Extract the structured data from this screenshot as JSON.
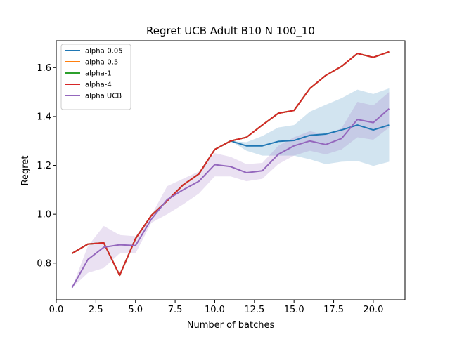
{
  "chart_data": {
    "type": "line",
    "title": "Regret UCB Adult B10 N 100_10",
    "xlabel": "Number of batches",
    "ylabel": "Regret",
    "xlim": [
      0,
      22.0
    ],
    "ylim": [
      0.65,
      1.71
    ],
    "xticks": [
      0.0,
      2.5,
      5.0,
      7.5,
      10.0,
      12.5,
      15.0,
      17.5,
      20.0
    ],
    "xtick_labels": [
      "0.0",
      "2.5",
      "5.0",
      "7.5",
      "10.0",
      "12.5",
      "15.0",
      "17.5",
      "20.0"
    ],
    "yticks": [
      0.8,
      1.0,
      1.2,
      1.4,
      1.6
    ],
    "ytick_labels": [
      "0.8",
      "1.0",
      "1.2",
      "1.4",
      "1.6"
    ],
    "legend_position": "top-left",
    "grid": false,
    "x": [
      1,
      2,
      3,
      4,
      5,
      6,
      7,
      8,
      9,
      10,
      11,
      12,
      13,
      14,
      15,
      16,
      17,
      18,
      19,
      20,
      21
    ],
    "series": [
      {
        "name": "alpha-0.05",
        "color": "#1f77b4",
        "values": [
          0.84,
          0.878,
          0.883,
          0.75,
          0.9,
          0.995,
          1.055,
          1.12,
          1.165,
          1.265,
          1.3,
          1.28,
          1.28,
          1.298,
          1.302,
          1.323,
          1.328,
          1.345,
          1.365,
          1.345,
          1.365
        ],
        "band_low": [
          0.84,
          0.878,
          0.883,
          0.75,
          0.9,
          0.995,
          1.055,
          1.12,
          1.165,
          1.265,
          1.3,
          1.26,
          1.24,
          1.24,
          1.24,
          1.225,
          1.205,
          1.215,
          1.218,
          1.198,
          1.215
        ],
        "band_high": [
          0.84,
          0.878,
          0.883,
          0.75,
          0.9,
          0.995,
          1.055,
          1.12,
          1.165,
          1.265,
          1.3,
          1.295,
          1.32,
          1.355,
          1.365,
          1.42,
          1.448,
          1.475,
          1.51,
          1.492,
          1.515
        ]
      },
      {
        "name": "alpha-0.5",
        "color": "#ff7f0e",
        "values": [
          0.84,
          0.878,
          0.883,
          0.75,
          0.9,
          0.995,
          1.055,
          1.12,
          1.165,
          1.265,
          1.3,
          1.315,
          1.365,
          1.413,
          1.425,
          1.515,
          1.568,
          1.605,
          1.658,
          1.642,
          1.665
        ]
      },
      {
        "name": "alpha-1",
        "color": "#2ca02c",
        "values": [
          0.84,
          0.878,
          0.883,
          0.75,
          0.9,
          0.995,
          1.055,
          1.12,
          1.165,
          1.265,
          1.3,
          1.315,
          1.365,
          1.413,
          1.425,
          1.515,
          1.568,
          1.605,
          1.658,
          1.642,
          1.665
        ]
      },
      {
        "name": "alpha-4",
        "color": "#d62728",
        "values": [
          0.84,
          0.878,
          0.883,
          0.75,
          0.9,
          0.995,
          1.055,
          1.12,
          1.165,
          1.265,
          1.3,
          1.315,
          1.365,
          1.413,
          1.425,
          1.515,
          1.568,
          1.605,
          1.658,
          1.642,
          1.665
        ]
      },
      {
        "name": "alpha UCB",
        "color": "#9467bd",
        "values": [
          0.7,
          0.815,
          0.865,
          0.875,
          0.872,
          0.98,
          1.06,
          1.1,
          1.135,
          1.203,
          1.195,
          1.17,
          1.178,
          1.245,
          1.28,
          1.3,
          1.285,
          1.31,
          1.388,
          1.375,
          1.432
        ],
        "band_low": [
          0.7,
          0.76,
          0.78,
          0.84,
          0.84,
          0.965,
          1.0,
          1.04,
          1.085,
          1.155,
          1.155,
          1.135,
          1.145,
          1.205,
          1.24,
          1.26,
          1.245,
          1.265,
          1.315,
          1.305,
          1.355
        ],
        "band_high": [
          0.7,
          0.87,
          0.952,
          0.915,
          0.91,
          0.995,
          1.115,
          1.145,
          1.175,
          1.25,
          1.235,
          1.205,
          1.21,
          1.28,
          1.315,
          1.34,
          1.325,
          1.352,
          1.46,
          1.445,
          1.5
        ]
      }
    ]
  }
}
